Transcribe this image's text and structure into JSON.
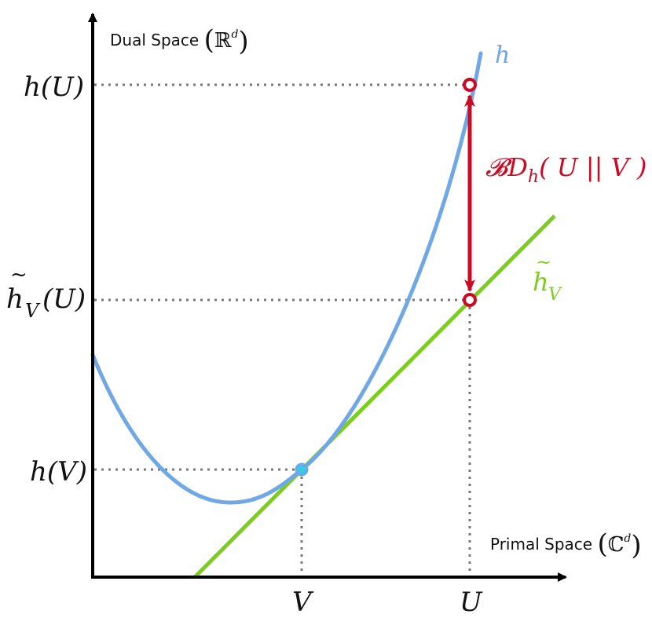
{
  "axes": {
    "y_title_text": "Dual Space ",
    "y_title_set": "ℝ",
    "y_title_sup": "d",
    "x_title_text": "Primal Space ",
    "x_title_set": "ℂ",
    "x_title_sup": "d"
  },
  "labels": {
    "h_U": "h(U)",
    "h_tilde_V_U_main": "h",
    "h_tilde_V_U_sub": "V",
    "h_tilde_V_U_rest": "(U)",
    "h_V": "h(V)",
    "x_V": "V",
    "x_U": "U",
    "curve_h": "h",
    "line_h_main": "h",
    "line_h_sub": "V",
    "tilde": "~",
    "bregman_B": "𝓑",
    "bregman_D": "D",
    "bregman_sub": "h",
    "bregman_args": "( U || V )"
  },
  "colors": {
    "curve": "#6fa8e4",
    "tangent": "#7ccd1e",
    "bregman": "#cc0a24",
    "point_fill": "#38c8e6",
    "guide": "#777777",
    "axis": "#000000"
  }
}
